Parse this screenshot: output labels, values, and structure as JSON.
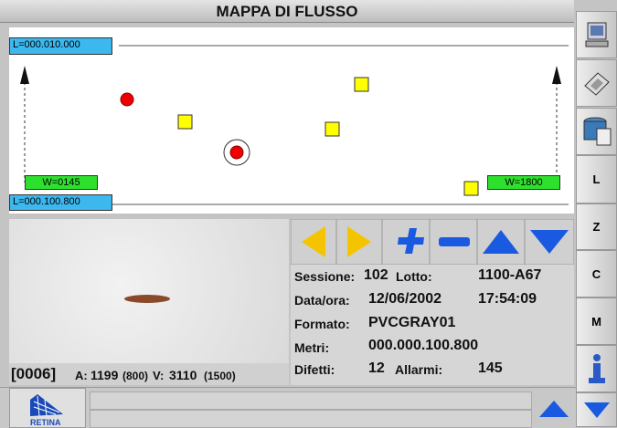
{
  "header": {
    "title": "MAPPA DI FLUSSO"
  },
  "sidebar": {
    "buttons": [
      "L",
      "Z",
      "C",
      "M"
    ]
  },
  "map": {
    "top_label": "L=000.010.000",
    "bottom_label": "L=000.100.800",
    "left_width": "W=0145",
    "right_width": "W=1800"
  },
  "image": {
    "status": {
      "index": "[0006]",
      "a_label": "A:",
      "a_value": "1199",
      "a_ref": "(800)",
      "v_label": "V:",
      "v_value": "3110",
      "v_ref": "(1500)"
    }
  },
  "info": {
    "session_label": "Sessione:",
    "session": "102",
    "lot_label": "Lotto:",
    "lot": "1100-A67",
    "date_label": "Data/ora:",
    "date": "12/06/2002",
    "time": "17:54:09",
    "format_label": "Formato:",
    "format": "PVCGRAY01",
    "meters_label": "Metri:",
    "meters": "000.000.100.800",
    "defects_label": "Difetti:",
    "defects": "12",
    "alarms_label": "Allarmi:",
    "alarms": "145"
  },
  "footer": {
    "logo": "RETINA"
  }
}
